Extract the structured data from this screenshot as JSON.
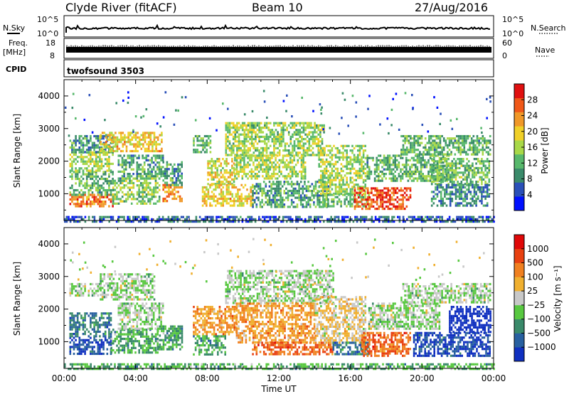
{
  "header": {
    "station": "Clyde River (fitACF)",
    "beam": "Beam 10",
    "date": "27/Aug/2016"
  },
  "top_panels": {
    "nsky_label": "N.Sky",
    "nsky_ticks": [
      "10^5",
      "10^0"
    ],
    "nsearch_label": "N.Search",
    "nsearch_ticks": [
      "10^5",
      "10^0"
    ],
    "freq_label": "Freq.",
    "freq_unit": "[MHz]",
    "freq_ticks": [
      "18",
      "8"
    ],
    "nave_label": "Nave",
    "nave_ticks": [
      "60",
      "0"
    ],
    "cpid_label": "CPID",
    "cpid_value": "twofsound 3503"
  },
  "chart_data": [
    {
      "type": "heatmap",
      "name": "power",
      "ylabel": "Slant Range [km]",
      "ylim": [
        180,
        4500
      ],
      "yticks": [
        1000,
        2000,
        3000,
        4000
      ],
      "xlim": [
        0,
        24
      ],
      "colorbar": {
        "label": "Power [dB]",
        "range": [
          0,
          32
        ],
        "ticks": [
          4,
          8,
          12,
          16,
          20,
          24,
          28
        ],
        "colors": [
          "#0010ff",
          "#2a50b8",
          "#3a8a6a",
          "#58b86c",
          "#a8d848",
          "#f0d028",
          "#f09828",
          "#f05818",
          "#e01010"
        ]
      },
      "bands": [
        {
          "t0": 0.3,
          "t1": 2.7,
          "r0": 650,
          "r1": 1000,
          "v": 25
        },
        {
          "t0": 0.3,
          "t1": 2.7,
          "r0": 1000,
          "r1": 1700,
          "v": 12
        },
        {
          "t0": 0.3,
          "t1": 2.7,
          "r0": 1700,
          "r1": 2300,
          "v": 16
        },
        {
          "t0": 0.3,
          "t1": 2.7,
          "r0": 2300,
          "r1": 2800,
          "v": 10
        },
        {
          "t0": 2.0,
          "t1": 5.5,
          "r0": 2300,
          "r1": 2900,
          "v": 20
        },
        {
          "t0": 2.7,
          "t1": 5.3,
          "r0": 700,
          "r1": 1500,
          "v": 14
        },
        {
          "t0": 3.0,
          "t1": 5.5,
          "r0": 1500,
          "r1": 2200,
          "v": 11
        },
        {
          "t0": 5.5,
          "t1": 6.6,
          "r0": 800,
          "r1": 1300,
          "v": 23
        },
        {
          "t0": 5.5,
          "t1": 6.6,
          "r0": 1300,
          "r1": 2000,
          "v": 10
        },
        {
          "t0": 7.2,
          "t1": 8.2,
          "r0": 2300,
          "r1": 2800,
          "v": 12
        },
        {
          "t0": 8.0,
          "t1": 9.5,
          "r0": 1300,
          "r1": 2100,
          "v": 18
        },
        {
          "t0": 7.7,
          "t1": 10.5,
          "r0": 650,
          "r1": 1300,
          "v": 20
        },
        {
          "t0": 9.0,
          "t1": 14.5,
          "r0": 2200,
          "r1": 3200,
          "v": 15
        },
        {
          "t0": 9.5,
          "t1": 13.5,
          "r0": 1500,
          "r1": 2200,
          "v": 16
        },
        {
          "t0": 10.5,
          "t1": 14.8,
          "r0": 600,
          "r1": 1400,
          "v": 11
        },
        {
          "t0": 14.2,
          "t1": 16.8,
          "r0": 1000,
          "r1": 2500,
          "v": 16
        },
        {
          "t0": 14.5,
          "t1": 17.0,
          "r0": 600,
          "r1": 1000,
          "v": 12
        },
        {
          "t0": 16.2,
          "t1": 19.3,
          "r0": 550,
          "r1": 1200,
          "v": 27
        },
        {
          "t0": 16.8,
          "t1": 21.5,
          "r0": 1400,
          "r1": 2200,
          "v": 12
        },
        {
          "t0": 18.8,
          "t1": 23.8,
          "r0": 2200,
          "r1": 2800,
          "v": 12
        },
        {
          "t0": 20.5,
          "t1": 23.8,
          "r0": 1300,
          "r1": 2100,
          "v": 13
        },
        {
          "t0": 20.5,
          "t1": 23.8,
          "r0": 650,
          "r1": 1300,
          "v": 9
        },
        {
          "t0": 0.0,
          "t1": 24.0,
          "r0": 180,
          "r1": 320,
          "v": 6
        }
      ]
    },
    {
      "type": "heatmap",
      "name": "velocity",
      "ylabel": "Slant Range [km]",
      "ylim": [
        180,
        4500
      ],
      "yticks": [
        1000,
        2000,
        3000,
        4000
      ],
      "xlim": [
        0,
        24
      ],
      "xlabel": "Time UT",
      "xticks": [
        "00:00",
        "04:00",
        "08:00",
        "12:00",
        "16:00",
        "20:00",
        "00:00"
      ],
      "colorbar": {
        "label": "Velocity [m s⁻¹]",
        "ticks": [
          "1000",
          "500",
          "100",
          "25",
          "−25",
          "−100",
          "−500",
          "−1000"
        ],
        "colors": [
          "#1030c0",
          "#2860a0",
          "#3a8a6a",
          "#58c840",
          "#c8c8c8",
          "#f0b030",
          "#f08020",
          "#e84010",
          "#e00808"
        ]
      },
      "bands": [
        {
          "t0": 0.3,
          "t1": 2.6,
          "r0": 650,
          "r1": 1150,
          "v": 1
        },
        {
          "t0": 0.3,
          "t1": 2.6,
          "r0": 1150,
          "r1": 1900,
          "v": 2
        },
        {
          "t0": 0.3,
          "t1": 2.0,
          "r0": 2400,
          "r1": 2800,
          "v": 4
        },
        {
          "t0": 2.0,
          "t1": 5.0,
          "r0": 2300,
          "r1": 3100,
          "v": 4
        },
        {
          "t0": 2.6,
          "t1": 5.2,
          "r0": 650,
          "r1": 1400,
          "v": 3
        },
        {
          "t0": 3.0,
          "t1": 5.5,
          "r0": 1400,
          "r1": 2200,
          "v": 4
        },
        {
          "t0": 5.2,
          "t1": 6.6,
          "r0": 800,
          "r1": 1500,
          "v": 3
        },
        {
          "t0": 7.2,
          "t1": 9.6,
          "r0": 1200,
          "r1": 2100,
          "v": 6
        },
        {
          "t0": 7.2,
          "t1": 9.0,
          "r0": 600,
          "r1": 1200,
          "v": 3
        },
        {
          "t0": 9.0,
          "t1": 15.0,
          "r0": 2200,
          "r1": 3200,
          "v": 4
        },
        {
          "t0": 9.6,
          "t1": 14.0,
          "r0": 1000,
          "r1": 2200,
          "v": 6
        },
        {
          "t0": 10.5,
          "t1": 15.0,
          "r0": 600,
          "r1": 1000,
          "v": 7
        },
        {
          "t0": 14.0,
          "t1": 16.8,
          "r0": 1000,
          "r1": 2400,
          "v": 5
        },
        {
          "t0": 15.0,
          "t1": 17.0,
          "r0": 600,
          "r1": 1000,
          "v": 2
        },
        {
          "t0": 16.6,
          "t1": 19.3,
          "r0": 550,
          "r1": 1300,
          "v": 7
        },
        {
          "t0": 17.0,
          "t1": 21.0,
          "r0": 1400,
          "r1": 2200,
          "v": 4
        },
        {
          "t0": 18.8,
          "t1": 23.8,
          "r0": 2200,
          "r1": 2800,
          "v": 4
        },
        {
          "t0": 19.5,
          "t1": 23.8,
          "r0": 600,
          "r1": 1300,
          "v": 1
        },
        {
          "t0": 21.5,
          "t1": 23.8,
          "r0": 1300,
          "r1": 2100,
          "v": 0
        },
        {
          "t0": 0.0,
          "t1": 24.0,
          "r0": 180,
          "r1": 340,
          "v": 3
        }
      ]
    }
  ]
}
